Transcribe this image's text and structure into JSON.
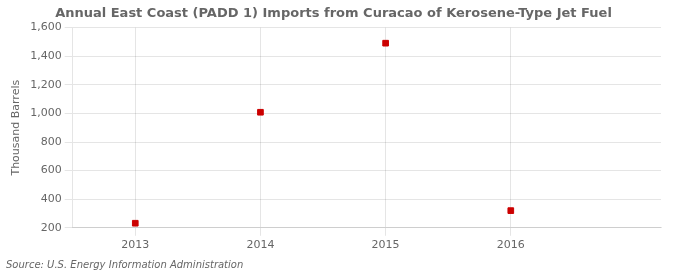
{
  "chart_data": {
    "type": "scatter",
    "title": "Annual East Coast (PADD 1) Imports from Curacao of Kerosene-Type Jet Fuel",
    "ylabel": "Thousand Barrels",
    "annotations": [
      "Source: U.S. Energy Information Administration"
    ],
    "x": [
      2013,
      2014,
      2015,
      2016
    ],
    "values": [
      232,
      1008,
      1491,
      320
    ],
    "color": "#cc0000",
    "marker": "square",
    "xlim": [
      2012.5,
      2017.2
    ],
    "xticks": [
      2013,
      2014,
      2015,
      2016
    ],
    "ylim": [
      200,
      1600
    ],
    "yticks": [
      200,
      400,
      600,
      800,
      {
        "value": 1000,
        "label": "1,000"
      },
      {
        "value": 1200,
        "label": "1,200"
      },
      {
        "value": 1400,
        "label": "1,400"
      },
      {
        "value": 1600,
        "label": "1,600"
      }
    ],
    "grid": true
  }
}
